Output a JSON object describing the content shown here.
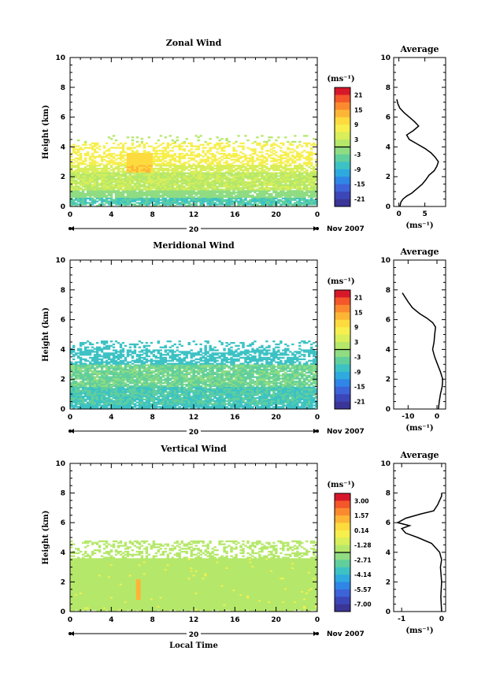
{
  "chart_data": [
    {
      "type": "heatmap",
      "title": "Zonal Wind",
      "xlabel": "",
      "ylabel": "Height (km)",
      "xlim": [
        0,
        24
      ],
      "ylim": [
        0,
        10
      ],
      "xticks": [
        "0",
        "4",
        "8",
        "12",
        "16",
        "20",
        "0"
      ],
      "yticks": [
        "0",
        "2",
        "4",
        "6",
        "8",
        "10"
      ],
      "date_label": "20",
      "date_suffix": "Nov 2007",
      "colorbar": {
        "unit": "(ms⁻¹)",
        "labels": [
          "21",
          "15",
          "9",
          "3",
          "-3",
          "-9",
          "-15",
          "-21"
        ],
        "colors": [
          "#d7182a",
          "#f4572a",
          "#fb8a2f",
          "#fdb536",
          "#fddb3e",
          "#f6ef4d",
          "#d8ee5a",
          "#b5e86a",
          "#8fdc83",
          "#61cf9c",
          "#3dc2c4",
          "#2eaadf",
          "#2f86e6",
          "#3d63d8",
          "#3b47b8",
          "#3a3596"
        ]
      },
      "avg": {
        "title": "Average",
        "xlabel": "(ms⁻¹)",
        "xticks": [
          "0",
          "5"
        ],
        "xlim": [
          -1,
          9
        ],
        "profile": [
          [
            0.2,
            0.0
          ],
          [
            0.4,
            0.3
          ],
          [
            0.8,
            0.5
          ],
          [
            1.5,
            0.7
          ],
          [
            2.5,
            0.9
          ],
          [
            3.5,
            1.2
          ],
          [
            4.5,
            1.5
          ],
          [
            5.2,
            1.8
          ],
          [
            5.8,
            2.1
          ],
          [
            6.8,
            2.4
          ],
          [
            7.3,
            2.7
          ],
          [
            7.6,
            3.0
          ],
          [
            7.0,
            3.3
          ],
          [
            6.2,
            3.6
          ],
          [
            5.0,
            3.9
          ],
          [
            3.5,
            4.2
          ],
          [
            2.0,
            4.5
          ],
          [
            1.5,
            4.8
          ],
          [
            2.8,
            5.1
          ],
          [
            3.8,
            5.4
          ],
          [
            3.0,
            5.7
          ],
          [
            2.0,
            6.0
          ],
          [
            1.0,
            6.3
          ],
          [
            0.2,
            6.6
          ],
          [
            -0.2,
            6.9
          ],
          [
            -0.4,
            7.2
          ]
        ]
      }
    },
    {
      "type": "heatmap",
      "title": "Meridional Wind",
      "xlabel": "",
      "ylabel": "Height (km)",
      "xlim": [
        0,
        24
      ],
      "ylim": [
        0,
        10
      ],
      "xticks": [
        "0",
        "4",
        "8",
        "12",
        "16",
        "20",
        "0"
      ],
      "yticks": [
        "0",
        "2",
        "4",
        "6",
        "8",
        "10"
      ],
      "date_label": "20",
      "date_suffix": "Nov 2007",
      "colorbar": {
        "unit": "(ms⁻¹)",
        "labels": [
          "21",
          "15",
          "9",
          "3",
          "-3",
          "-9",
          "-15",
          "-21"
        ],
        "colors": [
          "#d7182a",
          "#f4572a",
          "#fb8a2f",
          "#fdb536",
          "#fddb3e",
          "#f6ef4d",
          "#d8ee5a",
          "#b5e86a",
          "#8fdc83",
          "#61cf9c",
          "#3dc2c4",
          "#2eaadf",
          "#2f86e6",
          "#3d63d8",
          "#3b47b8",
          "#3a3596"
        ]
      },
      "avg": {
        "title": "Average",
        "xlabel": "(ms⁻¹)",
        "xticks": [
          "-10",
          "0"
        ],
        "xlim": [
          -15,
          3
        ],
        "profile": [
          [
            0.5,
            0.0
          ],
          [
            0.8,
            0.5
          ],
          [
            1.2,
            1.0
          ],
          [
            1.8,
            1.5
          ],
          [
            2.0,
            2.0
          ],
          [
            1.2,
            2.5
          ],
          [
            0.2,
            3.0
          ],
          [
            -0.8,
            3.5
          ],
          [
            -1.5,
            4.0
          ],
          [
            -1.0,
            4.5
          ],
          [
            -0.8,
            5.0
          ],
          [
            -0.5,
            5.5
          ],
          [
            -1.5,
            5.8
          ],
          [
            -3.5,
            6.1
          ],
          [
            -6.0,
            6.4
          ],
          [
            -8.5,
            6.8
          ],
          [
            -10.0,
            7.2
          ],
          [
            -11.0,
            7.5
          ],
          [
            -12.0,
            7.8
          ]
        ]
      }
    },
    {
      "type": "heatmap",
      "title": "Vertical Wind",
      "xlabel": "Local Time",
      "ylabel": "Height (km)",
      "xlim": [
        0,
        24
      ],
      "ylim": [
        0,
        10
      ],
      "xticks": [
        "0",
        "4",
        "8",
        "12",
        "16",
        "20",
        "0"
      ],
      "yticks": [
        "0",
        "2",
        "4",
        "6",
        "8",
        "10"
      ],
      "date_label": "20",
      "date_suffix": "Nov 2007",
      "colorbar": {
        "unit": "(ms⁻¹)",
        "labels": [
          "3.00",
          "1.57",
          "0.14",
          "-1.28",
          "-2.71",
          "-4.14",
          "-5.57",
          "-7.00"
        ],
        "colors": [
          "#d7182a",
          "#f4572a",
          "#fb8a2f",
          "#fdb536",
          "#fddb3e",
          "#f6ef4d",
          "#d8ee5a",
          "#b5e86a",
          "#8fdc83",
          "#61cf9c",
          "#3dc2c4",
          "#2eaadf",
          "#2f86e6",
          "#3d63d8",
          "#3b47b8",
          "#3a3596"
        ]
      },
      "avg": {
        "title": "Average",
        "xlabel": "(ms⁻¹)",
        "xticks": [
          "-1",
          "0"
        ],
        "xlim": [
          -1.2,
          0.1
        ],
        "profile": [
          [
            0.0,
            0.0
          ],
          [
            -0.02,
            1.0
          ],
          [
            0.0,
            2.0
          ],
          [
            -0.03,
            3.0
          ],
          [
            0.0,
            3.5
          ],
          [
            -0.05,
            4.0
          ],
          [
            -0.25,
            4.6
          ],
          [
            -0.6,
            5.0
          ],
          [
            -0.9,
            5.3
          ],
          [
            -1.0,
            5.6
          ],
          [
            -0.8,
            5.8
          ],
          [
            -1.1,
            6.0
          ],
          [
            -0.9,
            6.3
          ],
          [
            -0.5,
            6.6
          ],
          [
            -0.2,
            6.8
          ],
          [
            -0.1,
            7.2
          ],
          [
            0.0,
            7.8
          ],
          [
            0.0,
            8.0
          ]
        ]
      }
    }
  ]
}
